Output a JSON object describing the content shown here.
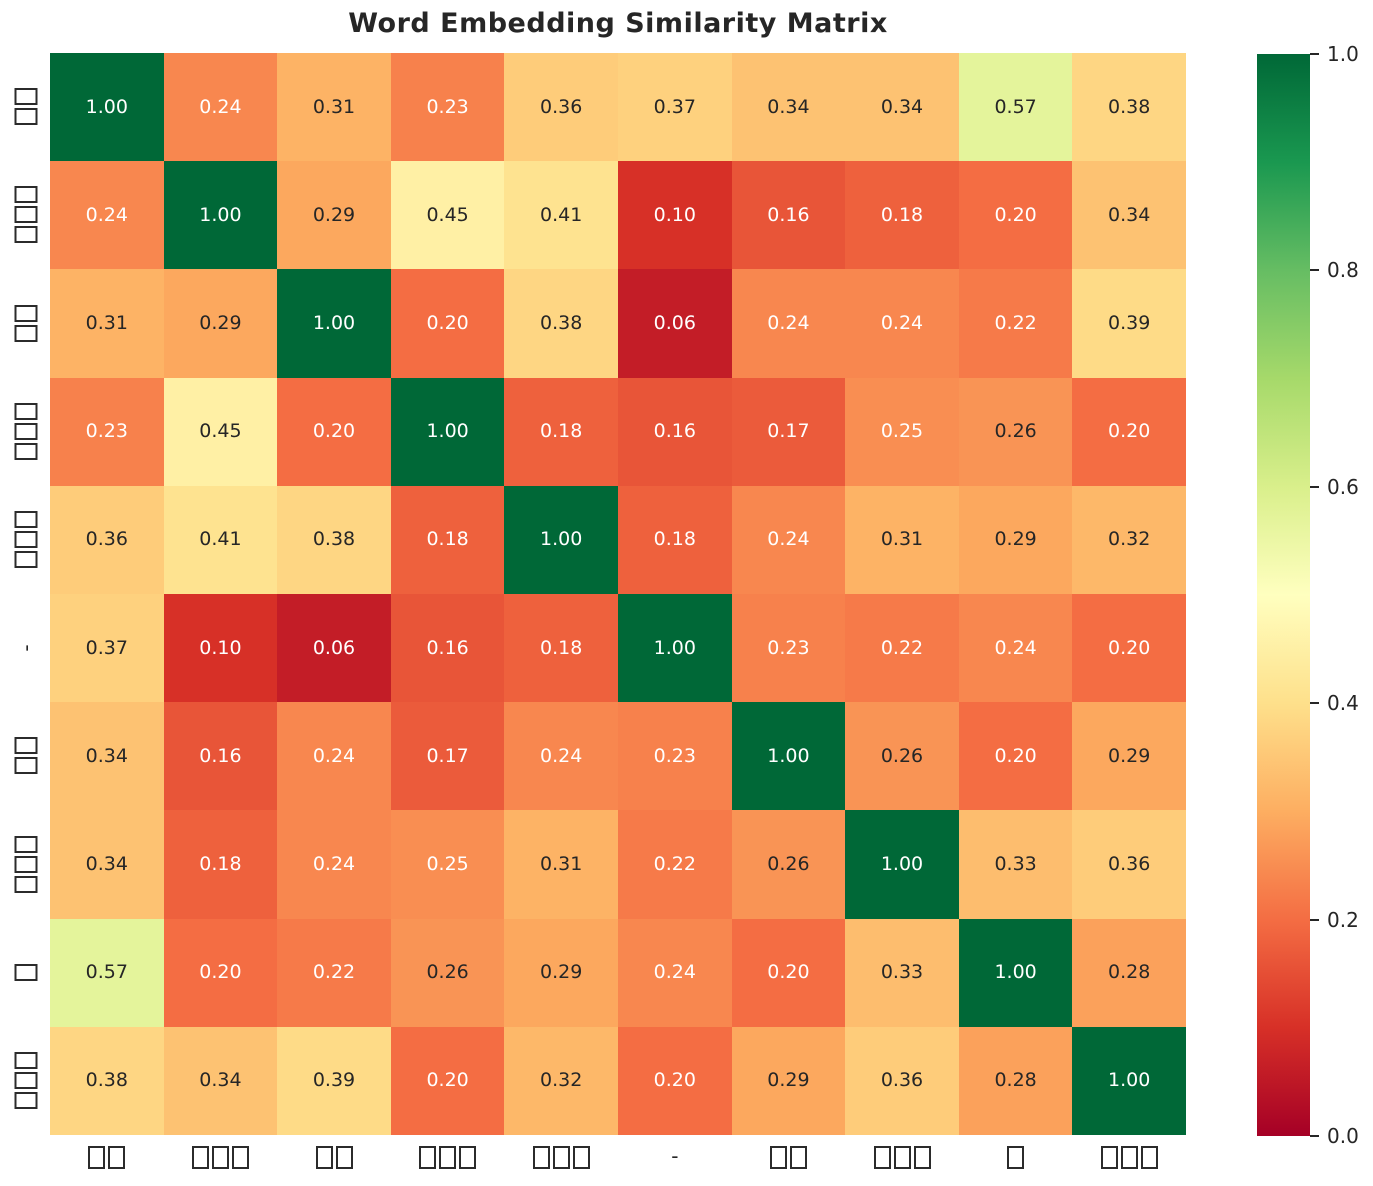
{
  "chart_data": {
    "type": "heatmap",
    "title": "Word Embedding Similarity Matrix",
    "categories": [
      "□□",
      "□□□",
      "□□",
      "□□□",
      "□□□",
      "-",
      "□□",
      "□□□",
      "□",
      "□□□"
    ],
    "x_categories": [
      "□□",
      "□□□",
      "□□",
      "□□□",
      "□□□",
      "-",
      "□□",
      "□□□",
      "□",
      "□□□"
    ],
    "y_categories": [
      "□□",
      "□□□",
      "□□",
      "□□□",
      "□□□",
      "-",
      "□□",
      "□□□",
      "□",
      "□□□"
    ],
    "matrix": [
      [
        1.0,
        0.24,
        0.31,
        0.23,
        0.36,
        0.37,
        0.34,
        0.34,
        0.57,
        0.38
      ],
      [
        0.24,
        1.0,
        0.29,
        0.45,
        0.41,
        0.1,
        0.16,
        0.18,
        0.2,
        0.34
      ],
      [
        0.31,
        0.29,
        1.0,
        0.2,
        0.38,
        0.06,
        0.24,
        0.24,
        0.22,
        0.39
      ],
      [
        0.23,
        0.45,
        0.2,
        1.0,
        0.18,
        0.16,
        0.17,
        0.25,
        0.26,
        0.2
      ],
      [
        0.36,
        0.41,
        0.38,
        0.18,
        1.0,
        0.18,
        0.24,
        0.31,
        0.29,
        0.32
      ],
      [
        0.37,
        0.1,
        0.06,
        0.16,
        0.18,
        1.0,
        0.23,
        0.22,
        0.24,
        0.2
      ],
      [
        0.34,
        0.16,
        0.24,
        0.17,
        0.24,
        0.23,
        1.0,
        0.26,
        0.2,
        0.29
      ],
      [
        0.34,
        0.18,
        0.24,
        0.25,
        0.31,
        0.22,
        0.26,
        1.0,
        0.33,
        0.36
      ],
      [
        0.57,
        0.2,
        0.22,
        0.26,
        0.29,
        0.24,
        0.2,
        0.33,
        1.0,
        0.28
      ],
      [
        0.38,
        0.34,
        0.39,
        0.2,
        0.32,
        0.2,
        0.29,
        0.36,
        0.28,
        1.0
      ]
    ],
    "value_format": ".2f",
    "vmin": 0.0,
    "vmax": 1.0,
    "grid": false,
    "colormap": {
      "name": "RdYlGn",
      "anchors": [
        "#a50026",
        "#d73027",
        "#f46d43",
        "#fdae61",
        "#fee08b",
        "#ffffbf",
        "#d9ef8b",
        "#a6d96a",
        "#66bd63",
        "#1a9850",
        "#006837"
      ]
    },
    "annotation_colors": {
      "on_dark_cell": "#ffffff",
      "on_light_cell": "#262626"
    },
    "colorbar": {
      "position": "right",
      "ticks": [
        {
          "value": 1.0,
          "label": "1.0"
        },
        {
          "value": 0.8,
          "label": "0.8"
        },
        {
          "value": 0.6,
          "label": "0.6"
        },
        {
          "value": 0.4,
          "label": "0.4"
        },
        {
          "value": 0.2,
          "label": "0.2"
        },
        {
          "value": 0.0,
          "label": "0.0"
        }
      ]
    },
    "title_color": "#262626",
    "tick_label_color": "#262626",
    "background_color": "#ffffff"
  }
}
